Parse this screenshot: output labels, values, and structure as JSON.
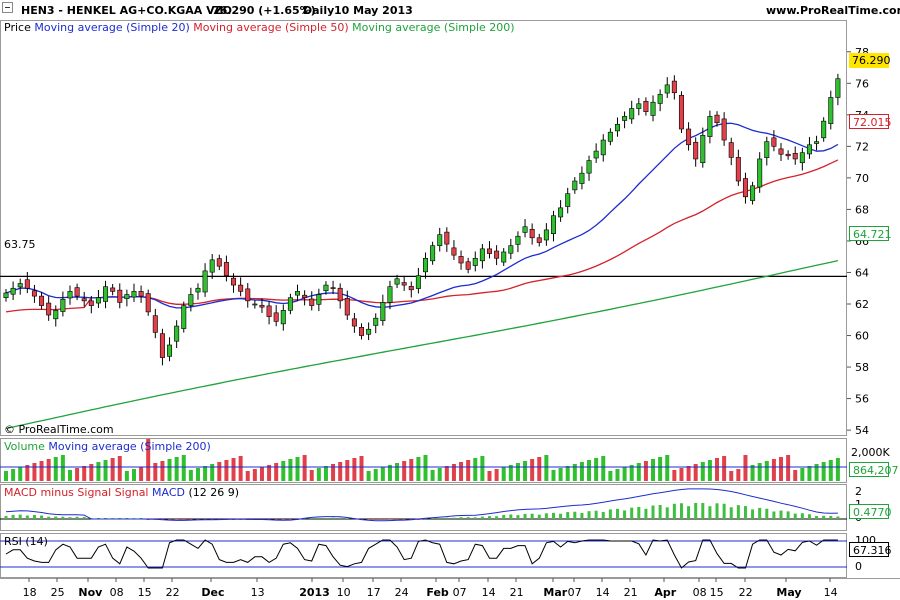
{
  "header": {
    "title": "HEN3 - HENKEL AG+CO.KGAA VZO",
    "price_change": "76.290 (+1.65%)",
    "period": "Daily",
    "date": "10 May 2013",
    "site": "www.ProRealTime.com"
  },
  "legend": {
    "price_prefix": "Price",
    "ma20": "Moving average (Simple 20)",
    "ma50": "Moving average (Simple 50)",
    "ma200": "Moving average (Simple 200)"
  },
  "copyright": "© ProRealTime.com",
  "volume_panel": {
    "label": "Volume",
    "ma_label": "Moving average (Simple 200)",
    "axis_label": "2,000K",
    "badge": "864,207"
  },
  "macd_panel": {
    "label1": "MACD minus Signal",
    "label2": "Signal",
    "label3": "MACD",
    "params": "(12 26 9)",
    "badge": "0.4770",
    "ticks": [
      "2",
      "1",
      "0"
    ]
  },
  "rsi_panel": {
    "label": "RSI (14)",
    "badge": "67.316",
    "ticks": [
      "100",
      "50",
      "0"
    ]
  },
  "price_badges": {
    "last": "76.290",
    "ma50": "72.015",
    "ma200": "64.721",
    "hline": "63.75"
  },
  "colors": {
    "up": "#2fbf2f",
    "down": "#e0404a",
    "ma20": "#1d2ccf",
    "ma50": "#d3222a",
    "ma200": "#1fa33a",
    "macd_pos": "#3fbf3f",
    "macd_neg": "#e84a55"
  },
  "chart_data": {
    "type": "candlestick",
    "instrument": "HEN3 - HENKEL AG+CO.KGAA VZO",
    "y_ticks": [
      54,
      56,
      58,
      60,
      62,
      64,
      66,
      68,
      70,
      72,
      74,
      76,
      78
    ],
    "ylim": [
      53.5,
      79
    ],
    "x_ticks": [
      "18",
      "25",
      "Nov",
      "08",
      "15",
      "22",
      "Dec",
      "13",
      "2013",
      "10",
      "17",
      "24",
      "Feb",
      "07",
      "14",
      "21",
      "Mar",
      "07",
      "14",
      "21",
      "Apr",
      "08",
      "15",
      "22",
      "May",
      "14"
    ],
    "horizontal_line": 63.75,
    "closes": [
      62.7,
      63.0,
      63.3,
      63.0,
      62.5,
      61.9,
      61.3,
      61.6,
      62.3,
      62.8,
      62.5,
      62.2,
      61.9,
      62.4,
      63.1,
      62.8,
      62.1,
      62.6,
      62.8,
      62.5,
      61.5,
      60.2,
      58.6,
      59.4,
      60.6,
      61.9,
      62.6,
      63.0,
      64.1,
      64.8,
      64.4,
      63.8,
      63.2,
      62.8,
      62.2,
      62.0,
      61.8,
      61.2,
      60.9,
      61.6,
      62.4,
      62.8,
      62.4,
      61.9,
      62.6,
      63.2,
      63.0,
      62.2,
      61.3,
      60.6,
      60.0,
      60.4,
      61.1,
      62.1,
      63.1,
      63.6,
      63.2,
      62.9,
      63.8,
      64.9,
      65.7,
      66.4,
      65.8,
      65.1,
      64.6,
      64.2,
      64.9,
      65.5,
      65.2,
      64.9,
      65.3,
      65.7,
      66.3,
      66.9,
      66.2,
      65.9,
      66.7,
      67.6,
      68.1,
      69.0,
      69.8,
      70.3,
      71.1,
      71.7,
      72.4,
      72.9,
      73.4,
      73.9,
      74.4,
      74.7,
      74.2,
      74.8,
      75.3,
      75.9,
      75.4,
      73.1,
      72.1,
      71.2,
      72.7,
      73.9,
      73.5,
      72.4,
      71.3,
      69.8,
      68.8,
      69.5,
      71.2,
      72.3,
      72.0,
      71.5,
      71.4,
      71.2,
      71.6,
      72.1,
      72.3,
      73.6,
      75.1,
      76.29
    ],
    "volume_max_label": "2,000K",
    "volume_last": 864207,
    "macd_last": 0.477,
    "rsi_last": 67.316
  }
}
